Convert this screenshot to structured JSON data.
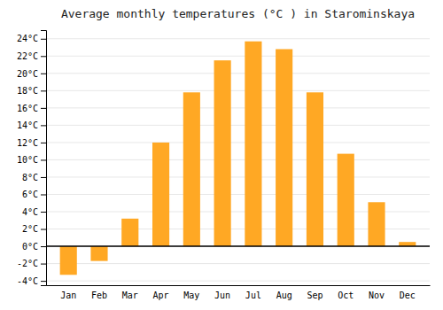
{
  "chart_data": {
    "type": "bar",
    "title": "Average monthly temperatures (°C ) in Starominskaya",
    "categories": [
      "Jan",
      "Feb",
      "Mar",
      "Apr",
      "May",
      "Jun",
      "Jul",
      "Aug",
      "Sep",
      "Oct",
      "Nov",
      "Dec"
    ],
    "values": [
      -3.3,
      -1.7,
      3.2,
      12.0,
      17.8,
      21.5,
      23.7,
      22.8,
      17.8,
      10.7,
      5.1,
      0.5
    ],
    "color": "#FFA824",
    "ylim": [
      -4.5,
      25
    ],
    "yticks": [
      {
        "value": -4,
        "label": "-4°C"
      },
      {
        "value": -2,
        "label": "-2°C"
      },
      {
        "value": 0,
        "label": "0°C"
      },
      {
        "value": 2,
        "label": "2°C"
      },
      {
        "value": 4,
        "label": "4°C"
      },
      {
        "value": 6,
        "label": "6°C"
      },
      {
        "value": 8,
        "label": "8°C"
      },
      {
        "value": 10,
        "label": "10°C"
      },
      {
        "value": 12,
        "label": "12°C"
      },
      {
        "value": 14,
        "label": "14°C"
      },
      {
        "value": 16,
        "label": "16°C"
      },
      {
        "value": 18,
        "label": "18°C"
      },
      {
        "value": 20,
        "label": "20°C"
      },
      {
        "value": 22,
        "label": "22°C"
      },
      {
        "value": 24,
        "label": "24°C"
      }
    ],
    "grid": true
  }
}
